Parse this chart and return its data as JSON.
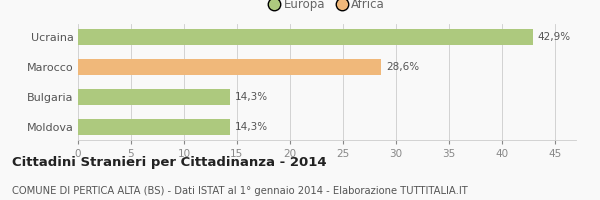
{
  "categories": [
    "Moldova",
    "Bulgaria",
    "Marocco",
    "Ucraina"
  ],
  "values": [
    14.3,
    14.3,
    28.6,
    42.9
  ],
  "labels": [
    "14,3%",
    "14,3%",
    "28,6%",
    "42,9%"
  ],
  "colors": [
    "#adc97e",
    "#adc97e",
    "#f0b87a",
    "#adc97e"
  ],
  "legend": [
    {
      "label": "Europa",
      "color": "#adc97e"
    },
    {
      "label": "Africa",
      "color": "#f0b87a"
    }
  ],
  "xlim": [
    0,
    47
  ],
  "xticks": [
    0,
    5,
    10,
    15,
    20,
    25,
    30,
    35,
    40,
    45
  ],
  "title": "Cittadini Stranieri per Cittadinanza - 2014",
  "subtitle": "COMUNE DI PERTICA ALTA (BS) - Dati ISTAT al 1° gennaio 2014 - Elaborazione TUTTITALIA.IT",
  "bg_color": "#f9f9f9",
  "bar_height": 0.52,
  "title_fontsize": 9.5,
  "subtitle_fontsize": 7.2,
  "label_fontsize": 7.5,
  "tick_fontsize": 7.5,
  "ytick_fontsize": 8,
  "legend_fontsize": 8.5
}
